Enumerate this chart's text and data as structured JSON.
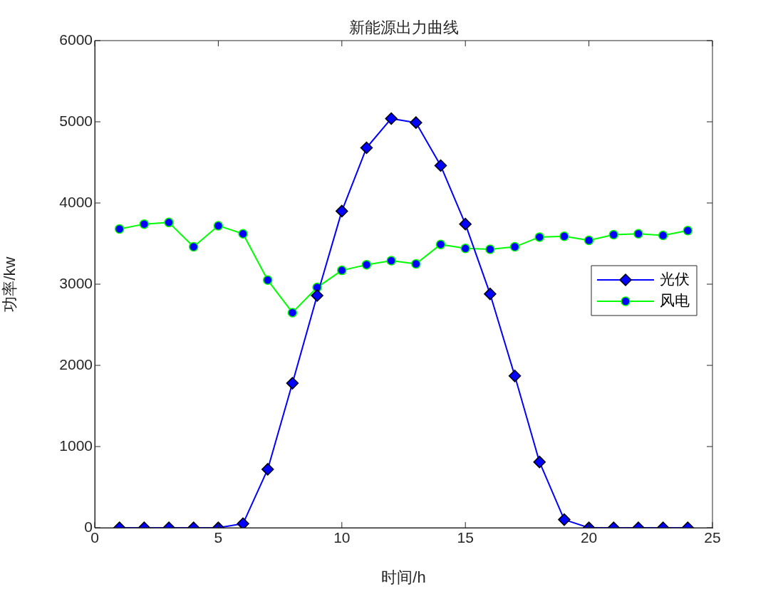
{
  "chart_data": {
    "type": "line",
    "title": "新能源出力曲线",
    "xlabel": "时间/h",
    "ylabel": "功率/kw",
    "x": [
      1,
      2,
      3,
      4,
      5,
      6,
      7,
      8,
      9,
      10,
      11,
      12,
      13,
      14,
      15,
      16,
      17,
      18,
      19,
      20,
      21,
      22,
      23,
      24
    ],
    "series": [
      {
        "name": "光伏",
        "color": "#0000ff",
        "marker": "diamond",
        "values": [
          0,
          0,
          0,
          0,
          0,
          50,
          720,
          1780,
          2860,
          3900,
          4680,
          5040,
          4990,
          4460,
          3740,
          2880,
          1870,
          810,
          100,
          0,
          0,
          0,
          0,
          0
        ]
      },
      {
        "name": "风电",
        "color": "#00ff00",
        "marker": "circle",
        "values": [
          3680,
          3740,
          3760,
          3460,
          3720,
          3620,
          3050,
          2650,
          2960,
          3170,
          3240,
          3290,
          3250,
          3490,
          3440,
          3430,
          3460,
          3580,
          3590,
          3540,
          3610,
          3620,
          3600,
          3660
        ]
      }
    ],
    "xlim": [
      0,
      25
    ],
    "xticks": [
      0,
      5,
      10,
      15,
      20,
      25
    ],
    "ylim": [
      0,
      6000
    ],
    "yticks": [
      0,
      1000,
      2000,
      3000,
      4000,
      5000,
      6000
    ],
    "grid": false,
    "legend": "right",
    "line_style": "solid"
  }
}
